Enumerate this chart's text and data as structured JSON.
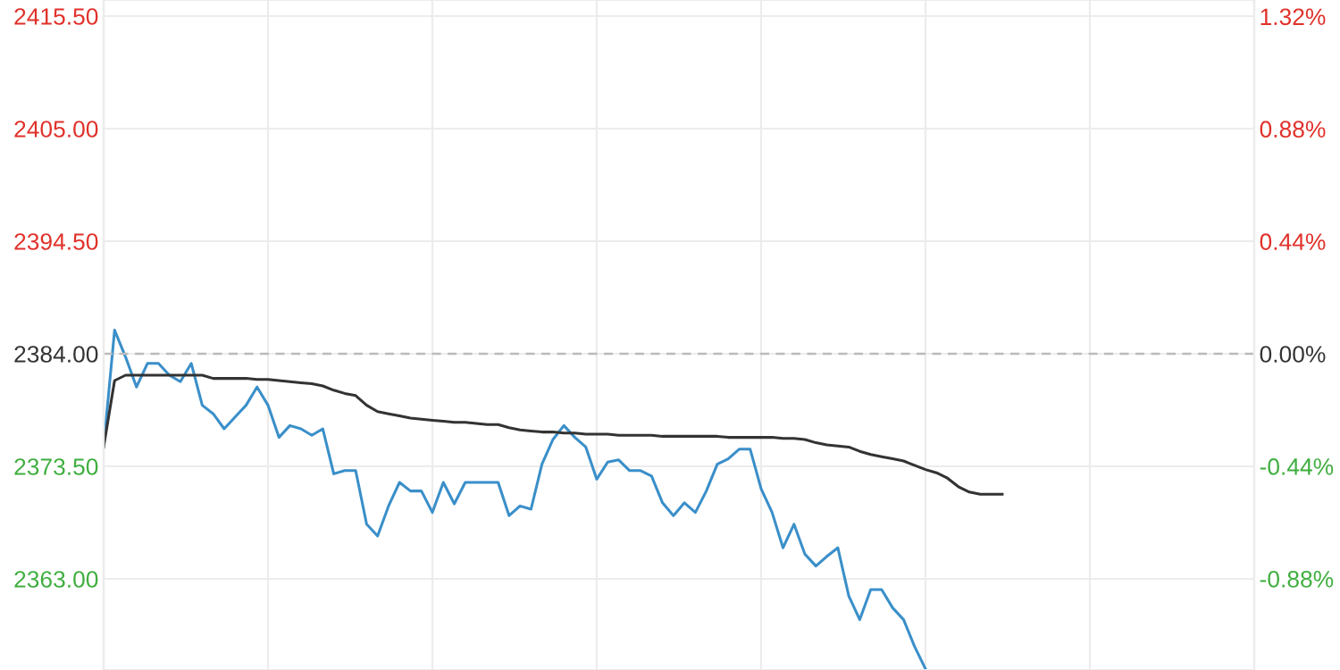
{
  "chart_data": {
    "type": "line",
    "categories": [
      null,
      null,
      null,
      null,
      null,
      null,
      null,
      null,
      null,
      null,
      null,
      null,
      null,
      null,
      null,
      null,
      null,
      null,
      null,
      null,
      null,
      null,
      null,
      null,
      null,
      null,
      null,
      null,
      null,
      null,
      null,
      null,
      null,
      null,
      null,
      null,
      null,
      null,
      null,
      null,
      null,
      null,
      null,
      null,
      null,
      null,
      null,
      null,
      null,
      null,
      null,
      null,
      null,
      null,
      null,
      null,
      null,
      null,
      null,
      null,
      null,
      null,
      null,
      null,
      null,
      null,
      null,
      null,
      null,
      null,
      null,
      null,
      null,
      null,
      null,
      null,
      null,
      null,
      null,
      null,
      null,
      null,
      null,
      null,
      null,
      null,
      null,
      null,
      null,
      null,
      null,
      null,
      null,
      null,
      null,
      null,
      null,
      null,
      null,
      null,
      null,
      null,
      null,
      null,
      null,
      null
    ],
    "ylim": [
      2354.5,
      2417
    ],
    "yticks": [
      {
        "value": 2363,
        "label": "2363.00"
      },
      {
        "value": 2373.5,
        "label": "2373.50"
      },
      {
        "value": 2384,
        "label": "2384.00"
      },
      {
        "value": 2394.5,
        "label": "2394.50"
      },
      {
        "value": 2405,
        "label": "2405.00"
      },
      {
        "value": 2415.5,
        "label": "2415.50"
      }
    ],
    "y2lim": [
      -1.237,
      1.384
    ],
    "y2ticks": [
      {
        "value": -0.88,
        "label": "-0.88%"
      },
      {
        "value": -0.44,
        "label": "-0.44%"
      },
      {
        "value": 0,
        "label": "0.00%"
      },
      {
        "value": 0.44,
        "label": "0.44%"
      },
      {
        "value": 0.88,
        "label": "0.88%"
      },
      {
        "value": 1.32,
        "label": "1.32%"
      }
    ],
    "grid": true,
    "marker": "none",
    "line_style": "solid",
    "ref_lines": [
      {
        "axis": "y",
        "value": 2384,
        "label": null,
        "color": "#bbbbbb",
        "line_style": "dashed"
      }
    ],
    "series": [
      {
        "color": "#3a8fc9",
        "values": [
          2375.3,
          2386.2,
          2383.7,
          2380.9,
          2383.1,
          2383.1,
          2382.0,
          2381.4,
          2383.1,
          2379.2,
          2378.4,
          2377.0,
          2378.1,
          2379.2,
          2380.9,
          2379.2,
          2376.2,
          2377.3,
          2377.0,
          2376.4,
          2377.0,
          2372.8,
          2373.1,
          2373.1,
          2368.1,
          2367.0,
          2369.8,
          2372.0,
          2371.2,
          2371.2,
          2369.2,
          2372.0,
          2370.0,
          2372.0,
          2372.0,
          2372.0,
          2372.0,
          2368.9,
          2369.8,
          2369.5,
          2373.7,
          2376.0,
          2377.3,
          2376.2,
          2375.3,
          2372.3,
          2373.9,
          2374.1,
          2373.1,
          2373.1,
          2372.6,
          2370.1,
          2368.9,
          2370.1,
          2369.2,
          2371.2,
          2373.7,
          2374.2,
          2375.1,
          2375.1,
          2371.4,
          2369.2,
          2365.9,
          2368.1,
          2365.3,
          2364.2,
          2365.1,
          2365.9,
          2361.4,
          2359.2,
          2362.0,
          2362.0,
          2360.3,
          2359.2,
          2356.7,
          2354.6,
          null,
          null,
          null,
          null,
          null,
          null,
          null,
          null,
          null,
          null,
          null,
          null,
          null,
          null,
          null,
          null,
          null,
          null,
          null,
          null,
          null,
          null,
          null,
          null,
          null,
          null,
          null,
          null,
          null,
          null
        ]
      },
      {
        "color": "#333333",
        "values": [
          2375.3,
          2381.5,
          2382.0,
          2382.0,
          2382.0,
          2382.0,
          2382.0,
          2382.0,
          2382.0,
          2382.0,
          2381.7,
          2381.7,
          2381.7,
          2381.7,
          2381.6,
          2381.6,
          2381.5,
          2381.4,
          2381.3,
          2381.2,
          2381.0,
          2380.6,
          2380.3,
          2380.1,
          2379.2,
          2378.6,
          2378.4,
          2378.2,
          2378.0,
          2377.9,
          2377.8,
          2377.7,
          2377.6,
          2377.6,
          2377.5,
          2377.4,
          2377.4,
          2377.1,
          2376.9,
          2376.8,
          2376.7,
          2376.7,
          2376.6,
          2376.6,
          2376.5,
          2376.5,
          2376.5,
          2376.4,
          2376.4,
          2376.4,
          2376.4,
          2376.3,
          2376.3,
          2376.3,
          2376.3,
          2376.3,
          2376.3,
          2376.2,
          2376.2,
          2376.2,
          2376.2,
          2376.2,
          2376.1,
          2376.1,
          2376.0,
          2375.7,
          2375.5,
          2375.4,
          2375.3,
          2374.9,
          2374.6,
          2374.4,
          2374.2,
          2374.0,
          2373.6,
          2373.2,
          2372.9,
          2372.4,
          2371.6,
          2371.1,
          2370.9,
          2370.9,
          2370.9,
          null,
          null,
          null,
          null,
          null,
          null,
          null,
          null,
          null,
          null,
          null,
          null,
          null,
          null,
          null,
          null,
          null,
          null,
          null,
          null,
          null,
          null,
          null
        ]
      }
    ]
  }
}
